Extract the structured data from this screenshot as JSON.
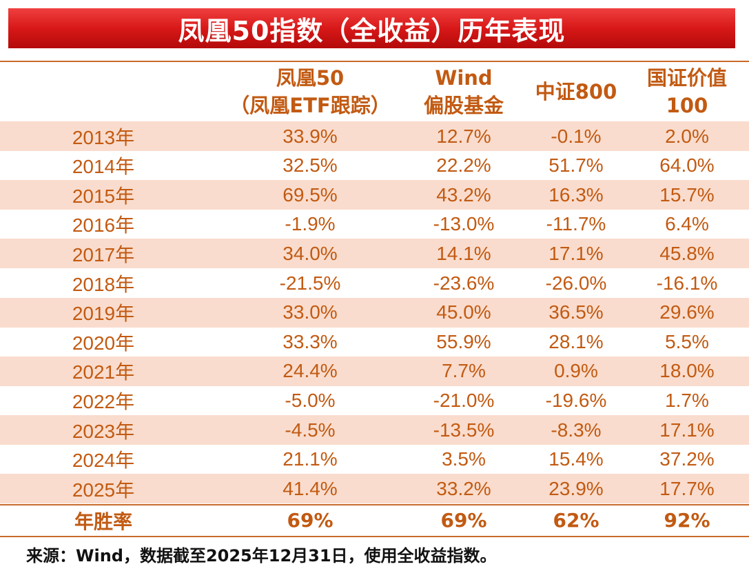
{
  "title": "凤凰50指数（全收益）历年表现",
  "source": "来源：Wind，数据截至2025年12月31日，使用全收益指数。",
  "colors": {
    "banner": "#d81818",
    "text": "#c25a12",
    "shade": "#f9dccd",
    "line": "#c96a2a"
  },
  "chart_data": {
    "type": "table",
    "title": "凤凰50指数（全收益）历年表现",
    "columns": [
      {
        "line1": "",
        "line2": ""
      },
      {
        "line1": "凤凰50",
        "line2": "（凤凰ETF跟踪）"
      },
      {
        "line1": "Wind",
        "line2": "偏股基金"
      },
      {
        "line1": "中证800",
        "line2": ""
      },
      {
        "line1": "国证价值",
        "line2": "100"
      }
    ],
    "rows": [
      {
        "year": "2013年",
        "values": [
          "33.9%",
          "12.7%",
          "-0.1%",
          "2.0%"
        ]
      },
      {
        "year": "2014年",
        "values": [
          "32.5%",
          "22.2%",
          "51.7%",
          "64.0%"
        ]
      },
      {
        "year": "2015年",
        "values": [
          "69.5%",
          "43.2%",
          "16.3%",
          "15.7%"
        ]
      },
      {
        "year": "2016年",
        "values": [
          "-1.9%",
          "-13.0%",
          "-11.7%",
          "6.4%"
        ]
      },
      {
        "year": "2017年",
        "values": [
          "34.0%",
          "14.1%",
          "17.1%",
          "45.8%"
        ]
      },
      {
        "year": "2018年",
        "values": [
          "-21.5%",
          "-23.6%",
          "-26.0%",
          "-16.1%"
        ]
      },
      {
        "year": "2019年",
        "values": [
          "33.0%",
          "45.0%",
          "36.5%",
          "29.6%"
        ]
      },
      {
        "year": "2020年",
        "values": [
          "33.3%",
          "55.9%",
          "28.1%",
          "5.5%"
        ]
      },
      {
        "year": "2021年",
        "values": [
          "24.4%",
          "7.7%",
          "0.9%",
          "18.0%"
        ]
      },
      {
        "year": "2022年",
        "values": [
          "-5.0%",
          "-21.0%",
          "-19.6%",
          "1.7%"
        ]
      },
      {
        "year": "2023年",
        "values": [
          "-4.5%",
          "-13.5%",
          "-8.3%",
          "17.1%"
        ]
      },
      {
        "year": "2024年",
        "values": [
          "21.1%",
          "3.5%",
          "15.4%",
          "37.2%"
        ]
      },
      {
        "year": "2025年",
        "values": [
          "41.4%",
          "33.2%",
          "23.9%",
          "17.7%"
        ]
      }
    ],
    "summary": {
      "label": "年胜率",
      "values": [
        "69%",
        "69%",
        "62%",
        "92%"
      ]
    }
  }
}
